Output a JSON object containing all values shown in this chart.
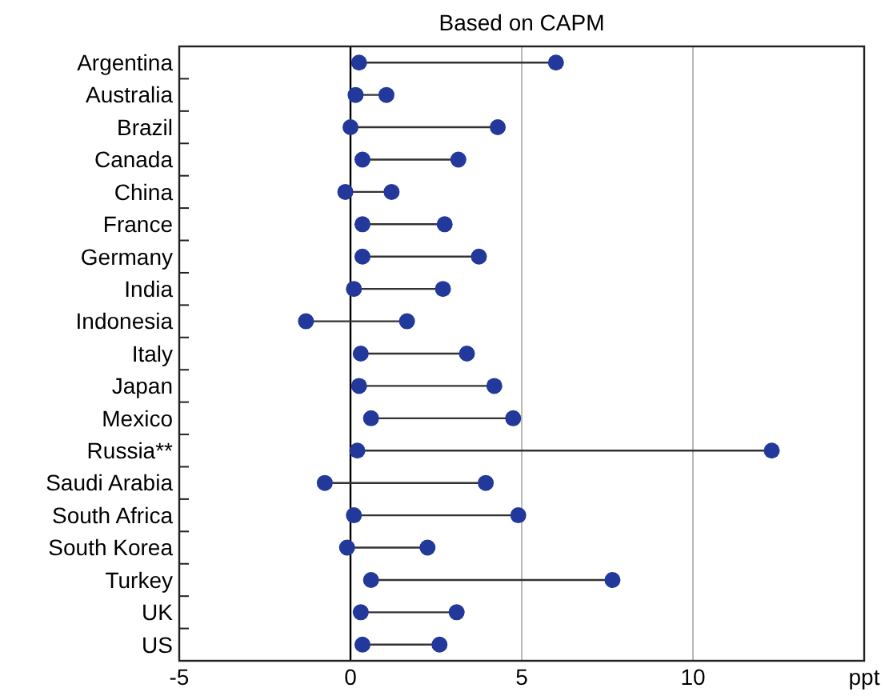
{
  "chart_data": {
    "type": "scatter",
    "title": "Based on CAPM",
    "orientation": "horizontal",
    "categories": [
      "Argentina",
      "Australia",
      "Brazil",
      "Canada",
      "China",
      "France",
      "Germany",
      "India",
      "Indonesia",
      "Italy",
      "Japan",
      "Mexico",
      "Russia**",
      "Saudi Arabia",
      "South Africa",
      "South Korea",
      "Turkey",
      "UK",
      "US"
    ],
    "series": [
      {
        "color": "#22389a",
        "values": [
          0.25,
          0.15,
          0,
          0.35,
          -0.15,
          0.35,
          0.35,
          0.1,
          -1.3,
          0.3,
          0.25,
          0.6,
          0.2,
          -0.75,
          0.1,
          -0.1,
          0.6,
          0.3,
          0.35
        ]
      },
      {
        "color": "#22389a",
        "values": [
          6,
          1.05,
          4.3,
          3.15,
          1.2,
          2.75,
          3.75,
          2.7,
          1.65,
          3.4,
          4.2,
          4.75,
          12.3,
          3.95,
          4.9,
          2.25,
          7.65,
          3.1,
          2.6
        ]
      }
    ],
    "xlim": [
      -5,
      15
    ],
    "xticks": [
      -5,
      0,
      5,
      10,
      {
        "value": 15,
        "label": "ppt"
      }
    ],
    "grid": "x",
    "marker": "circle",
    "ref_lines": [
      {
        "axis": "x",
        "value": 0,
        "color": "#000000"
      }
    ]
  }
}
